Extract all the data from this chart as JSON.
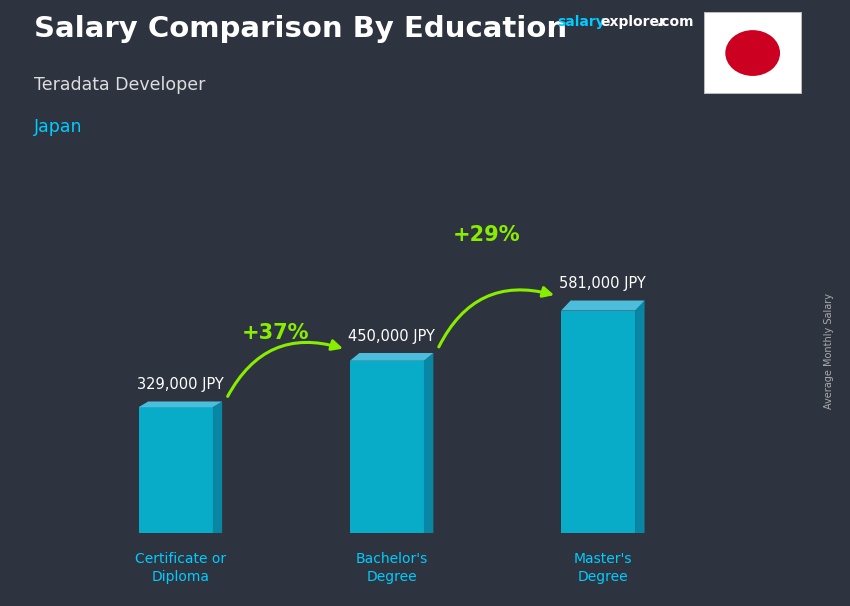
{
  "title_main": "Salary Comparison By Education",
  "title_sub": "Teradata Developer",
  "title_country": "Japan",
  "site_salary": "salary",
  "site_explorer": "explorer",
  "site_com": ".com",
  "ylabel_rotated": "Average Monthly Salary",
  "categories": [
    "Certificate or\nDiploma",
    "Bachelor's\nDegree",
    "Master's\nDegree"
  ],
  "values": [
    329000,
    450000,
    581000
  ],
  "value_labels": [
    "329,000 JPY",
    "450,000 JPY",
    "581,000 JPY"
  ],
  "pct_labels": [
    "+37%",
    "+29%"
  ],
  "bar_front_color": "#00c8e8",
  "bar_side_color": "#0099bb",
  "bar_top_color": "#55ddff",
  "bar_alpha": 0.82,
  "bg_color": "#2e3340",
  "title_color": "#ffffff",
  "subtitle_color": "#dddddd",
  "country_color": "#00ccff",
  "value_label_color": "#ffffff",
  "pct_color": "#88ee00",
  "arrow_color": "#88ee00",
  "category_color": "#00ccff",
  "site_color_salary": "#00ccff",
  "site_color_explorer": "#ffffff",
  "site_color_com": "#ffffff",
  "flag_bg": "#ffffff",
  "flag_circle": "#cc0020",
  "rotated_label_color": "#aaaaaa",
  "max_val": 700000
}
